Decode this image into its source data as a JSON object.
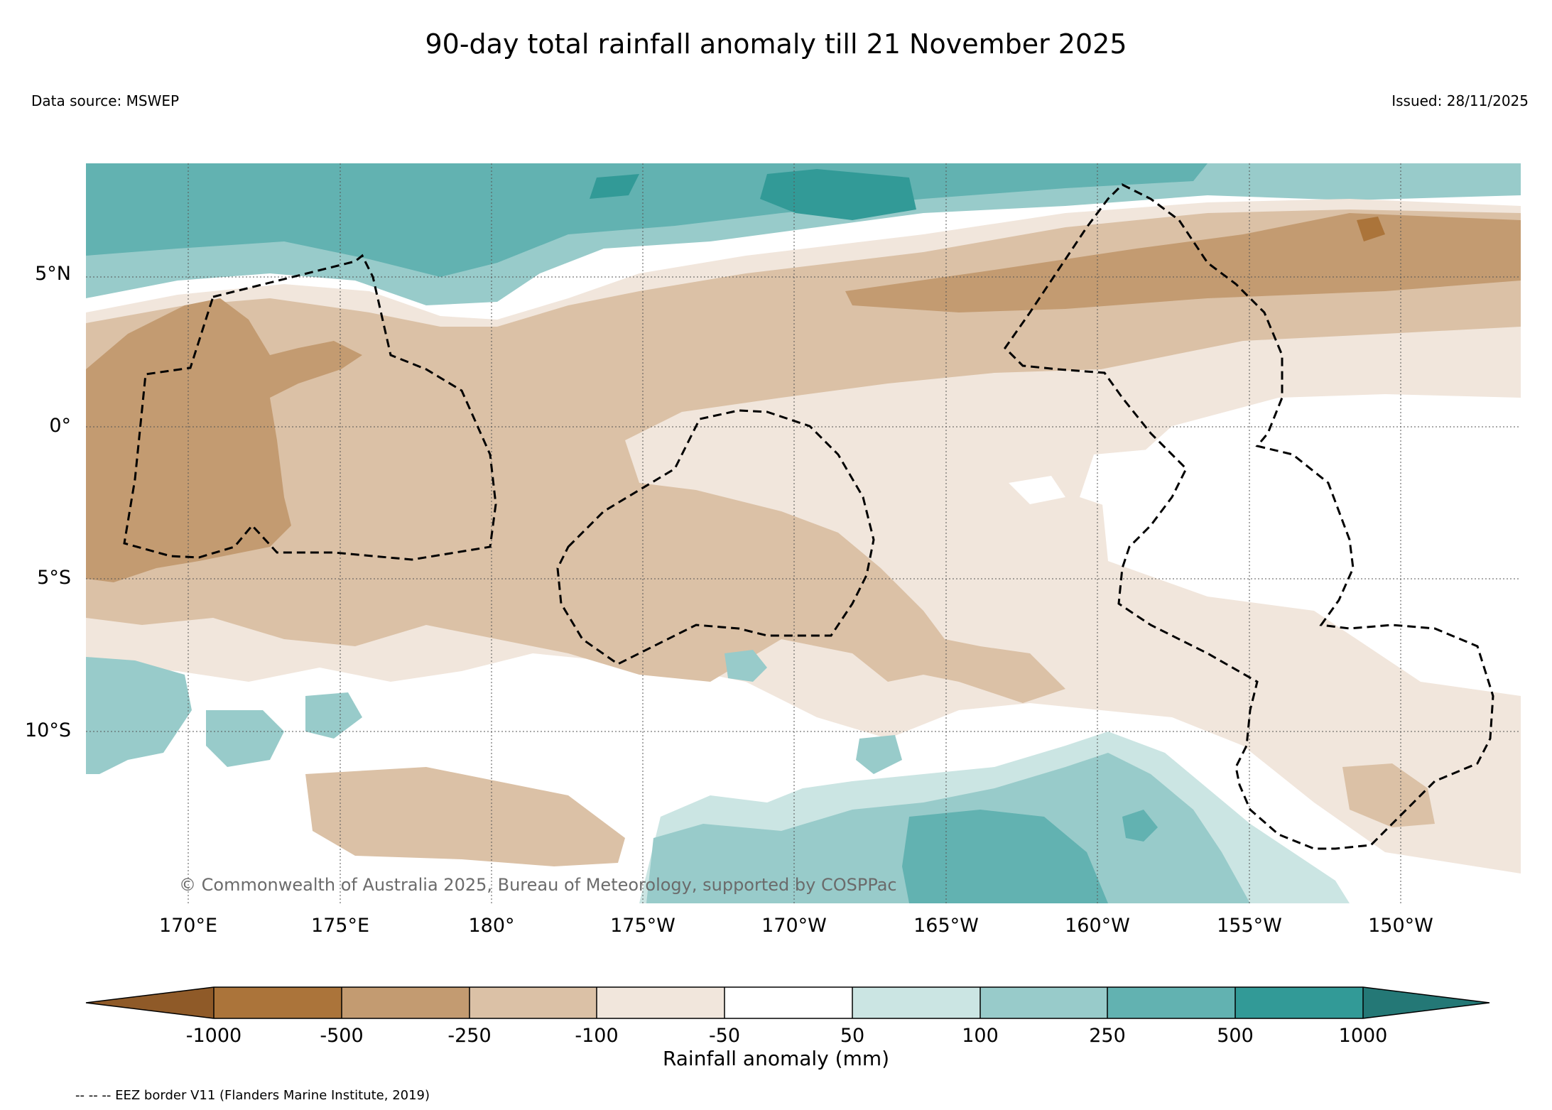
{
  "title": "90-day total rainfall anomaly till 21 November 2025",
  "data_source": "Data source: MSWEP",
  "issued": "Issued: 28/11/2025",
  "copyright": "© Commonwealth of Australia 2025, Bureau of Meteorology, supported by COSPPac",
  "lat_labels": [
    "5°N",
    "0°",
    "5°S",
    "10°S"
  ],
  "lon_labels": [
    "170°E",
    "175°E",
    "180°",
    "175°W",
    "170°W",
    "165°W",
    "160°W",
    "155°W",
    "150°W"
  ],
  "colorbar": {
    "title": "Rainfall anomaly (mm)",
    "tick_labels": [
      "-1000",
      "-500",
      "-250",
      "-100",
      "-50",
      "50",
      "100",
      "250",
      "500",
      "1000"
    ],
    "colors": [
      "#8f5a28",
      "#ab743a",
      "#c39b71",
      "#dbc1a6",
      "#f1e6dc",
      "#ffffff",
      "#cbe5e3",
      "#98cbca",
      "#62b2b1",
      "#329a97",
      "#247876"
    ]
  },
  "eez_note": "-- -- -- EEZ border V11 (Flanders Marine Institute, 2019)"
}
